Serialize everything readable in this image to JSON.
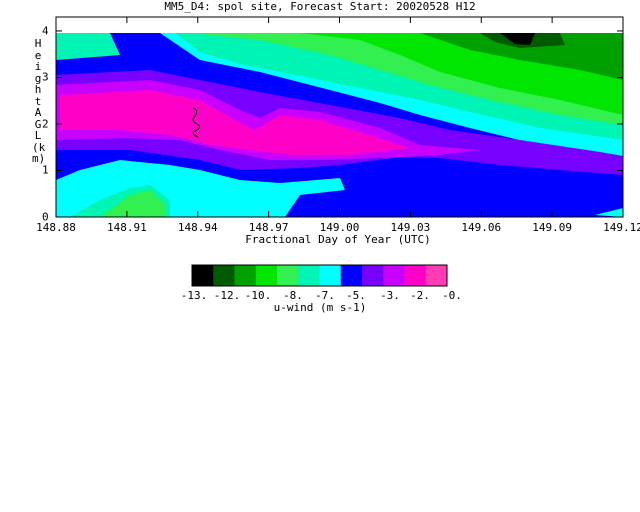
{
  "title": "MM5_D4: spol site,  Forecast Start: 20020528 H12",
  "chart_data": {
    "type": "heatmap",
    "xlabel": "Fractional Day of Year (UTC)",
    "ylabel": "Height AGL (km)",
    "x_ticks": [
      "148.88",
      "148.91",
      "148.94",
      "148.97",
      "149.00",
      "149.03",
      "149.06",
      "149.09",
      "149.12"
    ],
    "y_ticks": [
      "0",
      "1",
      "2",
      "3",
      "4"
    ],
    "xlim": [
      148.88,
      149.12
    ],
    "ylim": [
      0,
      4.3
    ],
    "colorbar": {
      "title": "u-wind (m s-1)",
      "labels": [
        "-13.",
        "-12.",
        "-10.",
        "-8.",
        "-7.",
        "-5.",
        "-3.",
        "-2.",
        "-0."
      ],
      "colors": [
        "#000000",
        "#005a00",
        "#00a000",
        "#00e600",
        "#32f050",
        "#00f5b4",
        "#00ffff",
        "#0000ff",
        "#7800ff",
        "#c800ff",
        "#ff00c8",
        "#ff3cb4"
      ]
    },
    "bands": [
      {
        "color": "#0000ff",
        "name": "-5 to -3"
      },
      {
        "color": "#00ffff",
        "name": "-7 to -5"
      },
      {
        "color": "#00f5b4",
        "name": "-8 to -7"
      },
      {
        "color": "#32f050",
        "name": "-10 to -8"
      },
      {
        "color": "#00e600",
        "name": "-10 to -9"
      },
      {
        "color": "#00a000",
        "name": "-12 to -10"
      },
      {
        "color": "#005a00",
        "name": "-13 to -12"
      },
      {
        "color": "#000000",
        "name": "< -13"
      },
      {
        "color": "#7800ff",
        "name": "-3 to -2"
      },
      {
        "color": "#c800ff",
        "name": "-2 to -1"
      },
      {
        "color": "#ff00c8",
        "name": "-1 to 0"
      }
    ]
  }
}
